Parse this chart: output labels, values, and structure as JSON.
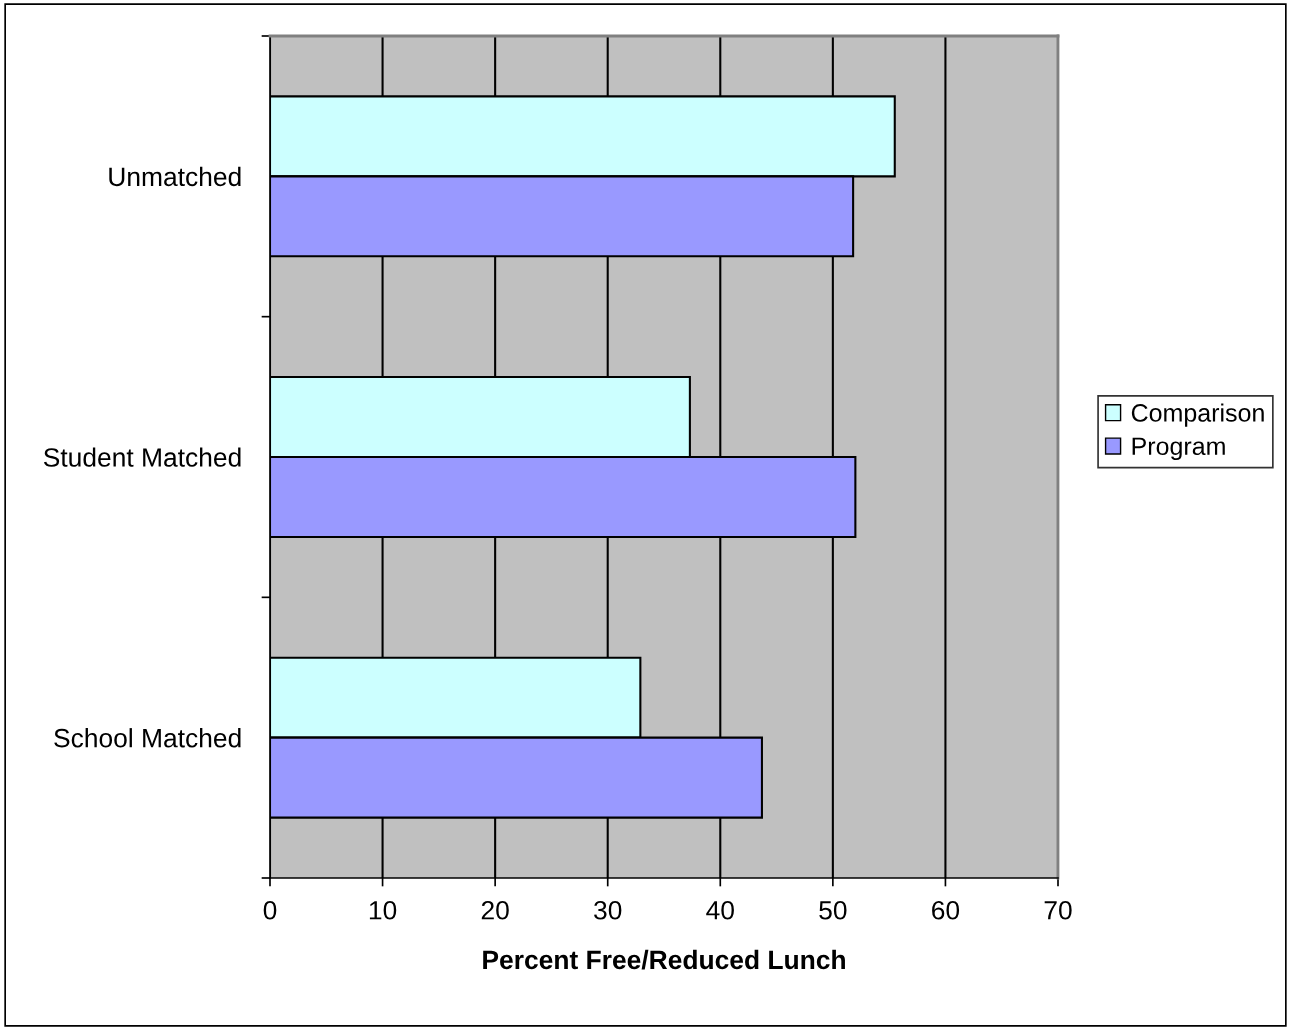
{
  "chart_data": {
    "type": "bar",
    "orientation": "horizontal",
    "xlabel": "Percent Free/Reduced Lunch",
    "categories": [
      "Unmatched",
      "Student Matched",
      "School Matched"
    ],
    "series": [
      {
        "name": "Comparison",
        "color": "#ccffff",
        "values": [
          55.5,
          37.3,
          32.9
        ]
      },
      {
        "name": "Program",
        "color": "#9999ff",
        "values": [
          51.8,
          52.0,
          43.7
        ]
      }
    ],
    "xlim": [
      0,
      70
    ],
    "xticks": [
      0,
      10,
      20,
      30,
      40,
      50,
      60,
      70
    ],
    "grid": "x",
    "legend": "right"
  }
}
